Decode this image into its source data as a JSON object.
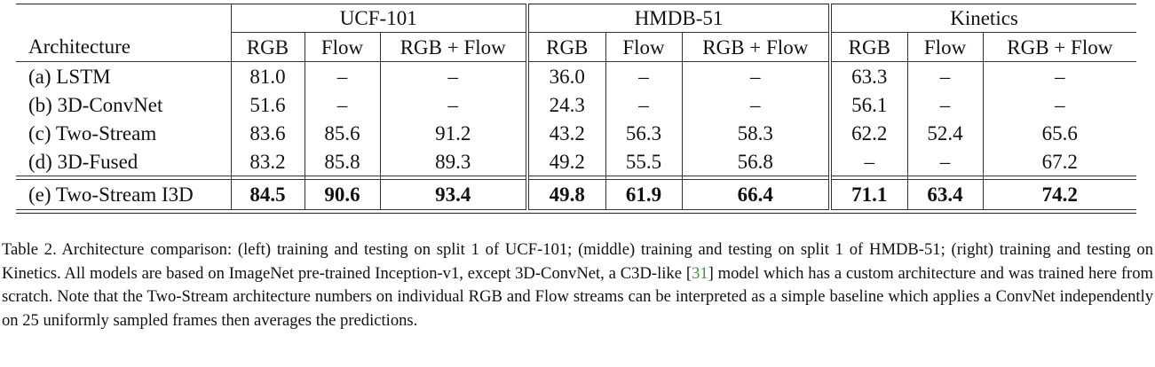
{
  "table": {
    "header_arch": "Architecture",
    "groups": [
      "UCF-101",
      "HMDB-51",
      "Kinetics"
    ],
    "sub_columns": [
      "RGB",
      "Flow",
      "RGB + Flow"
    ],
    "rows": [
      {
        "arch": "(a) LSTM",
        "values": [
          "81.0",
          "–",
          "–",
          "36.0",
          "–",
          "–",
          "63.3",
          "–",
          "–"
        ]
      },
      {
        "arch": "(b) 3D-ConvNet",
        "values": [
          "51.6",
          "–",
          "–",
          "24.3",
          "–",
          "–",
          "56.1",
          "–",
          "–"
        ]
      },
      {
        "arch": "(c) Two-Stream",
        "values": [
          "83.6",
          "85.6",
          "91.2",
          "43.2",
          "56.3",
          "58.3",
          "62.2",
          "52.4",
          "65.6"
        ]
      },
      {
        "arch": "(d) 3D-Fused",
        "values": [
          "83.2",
          "85.8",
          "89.3",
          "49.2",
          "55.5",
          "56.8",
          "–",
          "–",
          "67.2"
        ]
      }
    ],
    "best_row": {
      "arch": "(e) Two-Stream I3D",
      "values": [
        "84.5",
        "90.6",
        "93.4",
        "49.8",
        "61.9",
        "66.4",
        "71.1",
        "63.4",
        "74.2"
      ]
    }
  },
  "caption": {
    "part1": "Table 2. Architecture comparison: (left) training and testing on split 1 of UCF-101; (middle) training and testing on split 1 of HMDB-51; (right) training and testing on Kinetics. All models are based on ImageNet pre-trained Inception-v1, except 3D-ConvNet, a C3D-like [",
    "citation": "31",
    "part2": "] model which has a custom architecture and was trained here from scratch. Note that the Two-Stream architecture numbers on individual RGB and Flow streams can be interpreted as a simple baseline which applies a ConvNet independently on 25 uniformly sampled frames then averages the predictions."
  }
}
